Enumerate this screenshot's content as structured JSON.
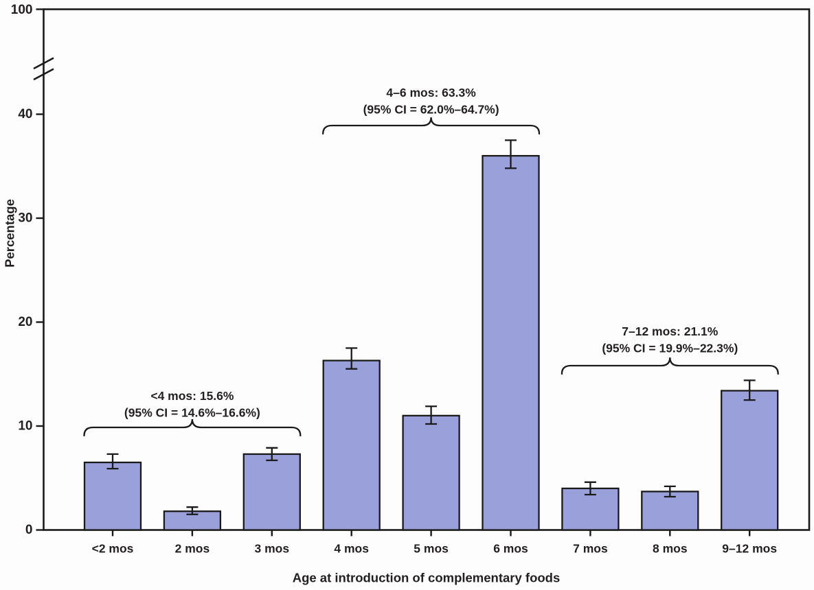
{
  "figure": {
    "kind": "bar chart with 95% confidence-interval error bars and y-axis break"
  },
  "chart_data": {
    "type": "bar",
    "title": "",
    "xlabel": "Age at introduction of complementary foods",
    "ylabel": "Percentage",
    "categories": [
      "<2 mos",
      "2 mos",
      "3 mos",
      "4 mos",
      "5 mos",
      "6 mos",
      "7 mos",
      "8 mos",
      "9–12 mos"
    ],
    "values": [
      6.5,
      1.8,
      7.3,
      16.3,
      11.0,
      36.0,
      4.0,
      3.7,
      13.4
    ],
    "ci_low": [
      5.9,
      1.5,
      6.7,
      15.5,
      10.2,
      34.8,
      3.4,
      3.2,
      12.5
    ],
    "ci_high": [
      7.3,
      2.2,
      7.9,
      17.5,
      11.9,
      37.5,
      4.6,
      4.2,
      14.4
    ],
    "y_ticks": [
      0,
      10,
      20,
      30,
      40
    ],
    "y_top_tick": 100,
    "axis_break_between": [
      40,
      100
    ],
    "grid": "off",
    "legend": "none",
    "bar_color": "#9aa0da",
    "bar_border_color": "#1a1a1a",
    "axis_color": "#1a1a1a",
    "text_color": "#231f20",
    "annotations": [
      {
        "line1": "<4 mos: 15.6%",
        "line2": "(95% CI = 14.6%–16.6%)",
        "bars": [
          0,
          2
        ]
      },
      {
        "line1": "4–6 mos: 63.3%",
        "line2": "(95% CI = 62.0%–64.7%)",
        "bars": [
          3,
          5
        ]
      },
      {
        "line1": "7–12 mos: 21.1%",
        "line2": "(95% CI = 19.9%–22.3%)",
        "bars": [
          6,
          8
        ]
      }
    ]
  }
}
